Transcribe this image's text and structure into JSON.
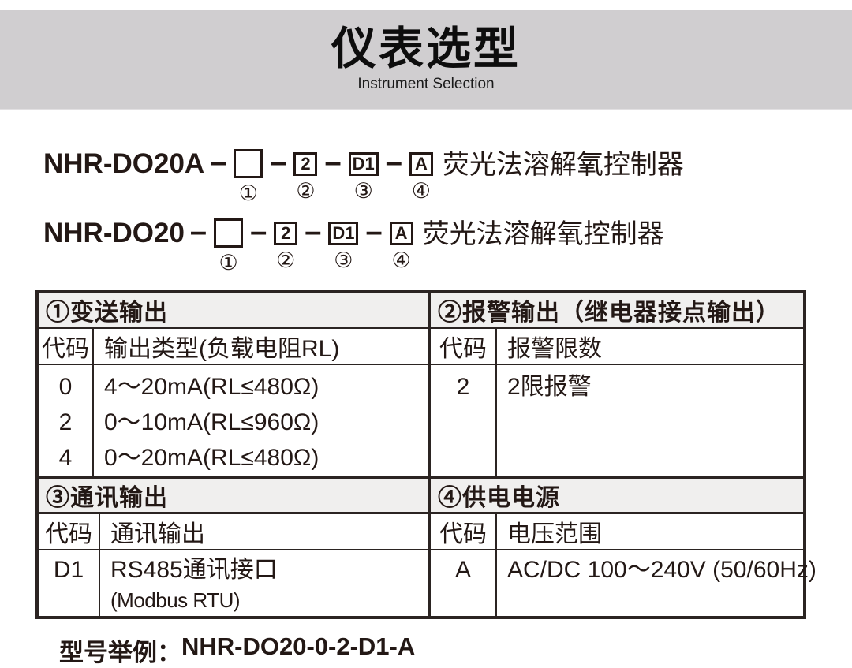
{
  "colors": {
    "banner_gray": "#d0ced0",
    "section_header_gray": "#f0efee",
    "text": "#231815",
    "border": "#2b2422"
  },
  "header": {
    "title": "仪表选型",
    "subtitle": "Instrument Selection"
  },
  "model_lines": [
    {
      "prefix": "NHR-DO20A",
      "separator": "–",
      "boxes": [
        "",
        "2",
        "D1",
        "A"
      ],
      "circles": [
        "①",
        "②",
        "③",
        "④"
      ],
      "suffix": "荧光法溶解氧控制器"
    },
    {
      "prefix": "NHR-DO20",
      "separator": "–",
      "boxes": [
        "",
        "2",
        "D1",
        "A"
      ],
      "circles": [
        "①",
        "②",
        "③",
        "④"
      ],
      "suffix": "荧光法溶解氧控制器"
    }
  ],
  "table": {
    "sections": [
      {
        "title": "①变送输出",
        "code_header": "代码",
        "desc_header": "输出类型(负载电阻RL)",
        "rows": [
          {
            "code": "0",
            "desc": "4～20mA(RL≤480Ω)"
          },
          {
            "code": "2",
            "desc": "0～10mA(RL≤960Ω)"
          },
          {
            "code": "4",
            "desc": "0～20mA(RL≤480Ω)"
          }
        ]
      },
      {
        "title": "②报警输出（继电器接点输出）",
        "code_header": "代码",
        "desc_header": "报警限数",
        "rows": [
          {
            "code": "2",
            "desc": "2限报警"
          }
        ]
      },
      {
        "title": "③通讯输出",
        "code_header": "代码",
        "desc_header": "通讯输出",
        "rows": [
          {
            "code": "D1",
            "desc": "RS485通讯接口",
            "desc2": "(Modbus RTU)"
          }
        ]
      },
      {
        "title": "④供电电源",
        "code_header": "代码",
        "desc_header": "电压范围",
        "rows": [
          {
            "code": "A",
            "desc": "AC/DC 100～240V (50/60Hz)"
          }
        ]
      }
    ]
  },
  "example": {
    "label": "型号举例：",
    "value": "NHR-DO20-0-2-D1-A"
  }
}
